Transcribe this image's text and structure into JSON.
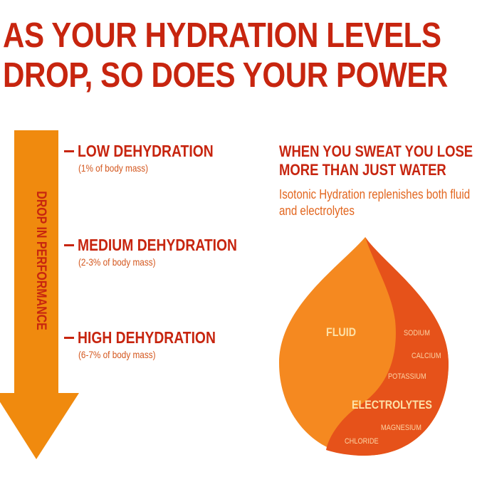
{
  "headline": {
    "line1": "AS YOUR HYDRATION LEVELS",
    "line2": "DROP, SO DOES YOUR POWER"
  },
  "arrow": {
    "label": "DROP IN PERFORMANCE"
  },
  "levels": [
    {
      "title": "LOW DEHYDRATION",
      "sub": "(1% of body mass)"
    },
    {
      "title": "MEDIUM DEHYDRATION",
      "sub": "(2-3% of body mass)"
    },
    {
      "title": "HIGH DEHYDRATION",
      "sub": "(6-7% of body mass)"
    }
  ],
  "sweat": {
    "title_line1": "WHEN YOU SWEAT YOU LOSE",
    "title_line2": "MORE THAN JUST WATER",
    "sub_line1": "Isotonic Hydration replenishes both fluid",
    "sub_line2": "and electrolytes"
  },
  "drop": {
    "fluid": "FLUID",
    "electrolytes": "ELECTROLYTES",
    "minerals": [
      "SODIUM",
      "CALCIUM",
      "POTASSIUM",
      "MAGNESIUM",
      "CHLORIDE"
    ]
  },
  "colors": {
    "headline_red": "#c7250f",
    "arrow_orange": "#f08a0e",
    "fluid_orange": "#f58920",
    "electrolyte_orange": "#e6521a"
  }
}
